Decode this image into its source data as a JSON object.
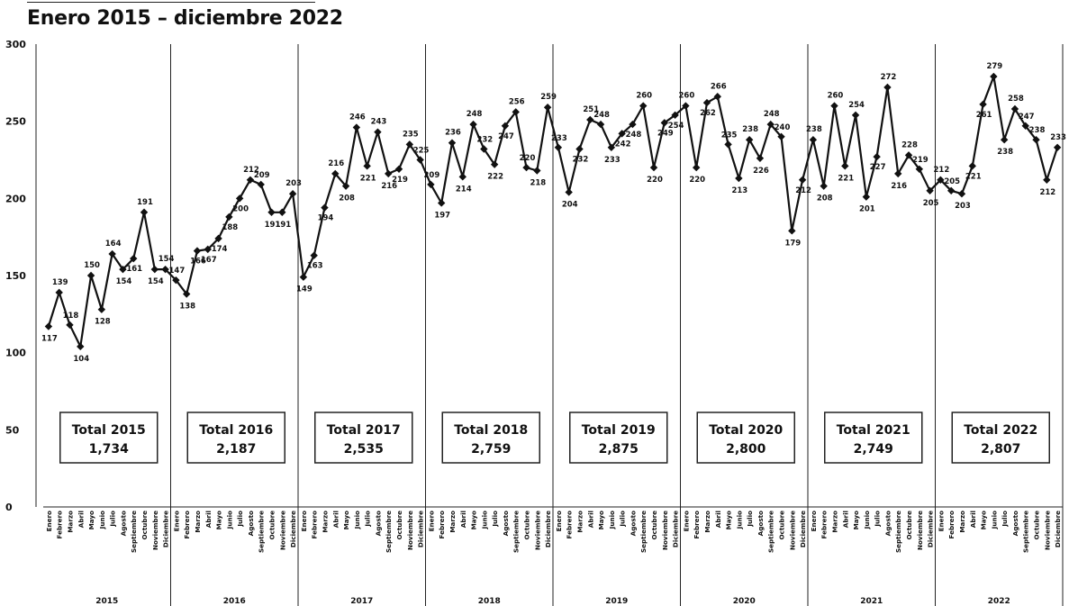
{
  "title": "Enero 2015 – diciembre 2022",
  "chart_data": {
    "type": "line",
    "title": "Enero 2015 – diciembre 2022",
    "ylim": [
      0,
      300
    ],
    "yticks": [
      0,
      50,
      100,
      150,
      200,
      250,
      300
    ],
    "grid": false,
    "months": [
      "Enero",
      "Febrero",
      "Marzo",
      "Abril",
      "Mayo",
      "Junio",
      "Julio",
      "Agosto",
      "Septiembre",
      "Octubre",
      "Noviembre",
      "Diciembre"
    ],
    "years": [
      "2015",
      "2016",
      "2017",
      "2018",
      "2019",
      "2020",
      "2021",
      "2022"
    ],
    "series": [
      {
        "values": [
          117,
          139,
          118,
          104,
          150,
          128,
          164,
          154,
          161,
          191,
          154,
          154,
          147,
          138,
          166,
          167,
          174,
          188,
          200,
          212,
          209,
          191,
          191,
          203,
          149,
          163,
          194,
          216,
          208,
          246,
          221,
          243,
          216,
          219,
          235,
          225,
          209,
          197,
          236,
          214,
          248,
          232,
          222,
          247,
          256,
          220,
          218,
          259,
          233,
          204,
          232,
          251,
          248,
          233,
          242,
          248,
          260,
          220,
          249,
          254,
          260,
          220,
          262,
          266,
          235,
          213,
          238,
          226,
          248,
          240,
          179,
          212,
          238,
          208,
          260,
          221,
          254,
          201,
          227,
          272,
          216,
          228,
          219,
          205,
          212,
          205,
          203,
          221,
          261,
          279,
          238,
          258,
          247,
          238,
          212,
          233
        ],
        "labels": [
          "117",
          "139",
          "118",
          "104",
          "150",
          "128",
          "164",
          "154",
          "161",
          "191",
          "154",
          "154",
          "147",
          "138",
          "166",
          "167",
          "174",
          "188",
          "200",
          "212",
          "209",
          "191",
          "191",
          "203",
          "149",
          "163",
          "194",
          "216",
          "208",
          "246",
          "221",
          "243",
          "216",
          "219",
          "235",
          "225",
          "209",
          "197",
          "236",
          "214",
          "248",
          "232",
          "222",
          "247",
          "256",
          "220",
          "218",
          "259",
          "233",
          "204",
          "232",
          "251",
          "248",
          "233",
          "242",
          "248",
          "260",
          "220",
          "249",
          "254",
          "260",
          "220",
          "262",
          "266",
          "235",
          "213",
          "238",
          "226",
          "248",
          "240",
          "179",
          "212",
          "238",
          "208",
          "260",
          "221",
          "254",
          "201",
          "227",
          "272",
          "216",
          "228",
          "219",
          "205",
          "212",
          "205",
          "203",
          "221",
          "261",
          "279",
          "238",
          "258",
          "247",
          "238",
          "212",
          "233"
        ]
      }
    ],
    "totals": [
      {
        "label": "Total 2015",
        "value": "1,734"
      },
      {
        "label": "Total 2016",
        "value": "2,187"
      },
      {
        "label": "Total 2017",
        "value": "2,535"
      },
      {
        "label": "Total 2018",
        "value": "2,759"
      },
      {
        "label": "Total 2019",
        "value": "2,875"
      },
      {
        "label": "Total 2020",
        "value": "2,800"
      },
      {
        "label": "Total 2021",
        "value": "2,749"
      },
      {
        "label": "Total 2022",
        "value": "2,807"
      }
    ],
    "colors": {
      "line": "#111111",
      "marker": "#111111",
      "divider": "#222222"
    }
  }
}
